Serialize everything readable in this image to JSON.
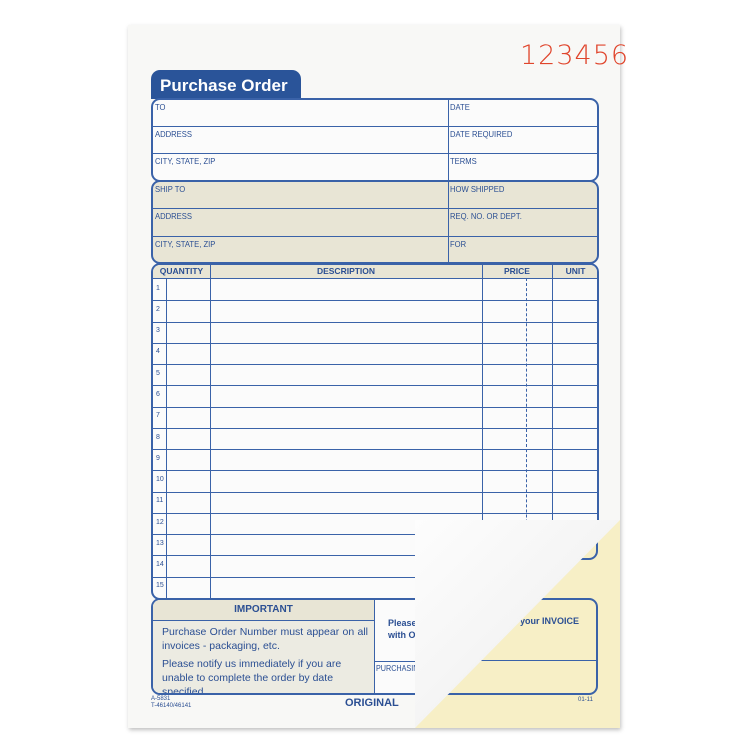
{
  "form_number": "123456",
  "title": "Purchase Order",
  "vendor": {
    "to": "TO",
    "address": "ADDRESS",
    "city": "CITY, STATE, ZIP",
    "date": "DATE",
    "date_required": "DATE REQUIRED",
    "terms": "TERMS"
  },
  "ship": {
    "ship_to": "SHIP TO",
    "address": "ADDRESS",
    "city": "CITY, STATE, ZIP",
    "how_shipped": "HOW SHIPPED",
    "req": "REQ. NO. OR DEPT.",
    "for": "FOR"
  },
  "table": {
    "headers": [
      "QUANTITY",
      "DESCRIPTION",
      "PRICE",
      "UNIT"
    ],
    "rows": [
      "1",
      "2",
      "3",
      "4",
      "5",
      "6",
      "7",
      "8",
      "9",
      "10",
      "11",
      "12",
      "13",
      "14",
      "15"
    ]
  },
  "important": {
    "title": "IMPORTANT",
    "p1": "Purchase Order Number must appear on all invoices - packaging, etc.",
    "p2": "Please notify us immediately if you are unable to complete the order by date specified."
  },
  "right": {
    "please": "Please s",
    "with": "with OR",
    "purchasing": "PURCHASING",
    "invoice": "your INVOICE"
  },
  "footer": {
    "code1": "A-5831",
    "code2": "T-46140/46141",
    "copy": "ORIGINAL",
    "date": "01-11"
  },
  "colors": {
    "ink": "#2b4f93",
    "number": "#e0452c",
    "tan": "#e8e5d5",
    "yellow": "#f7efc6"
  }
}
